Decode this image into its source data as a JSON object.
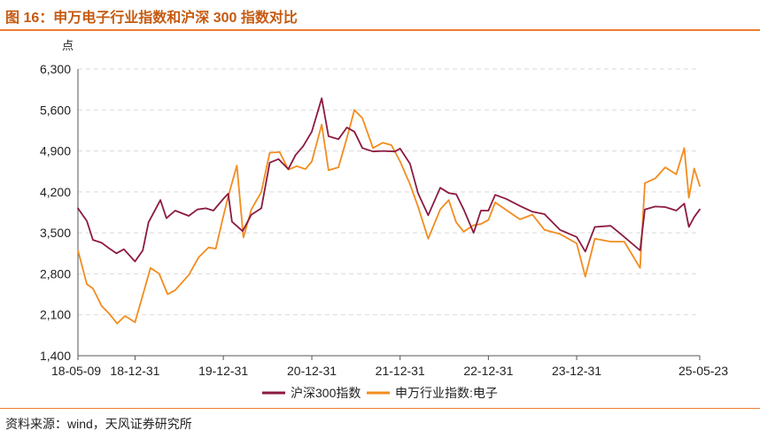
{
  "figure": {
    "title": "图 16：申万电子行业指数和沪深 300 指数对比",
    "source": "资料来源：wind，天风证券研究所"
  },
  "colors": {
    "title": "#c55a11",
    "rule": "#ed7d31",
    "hs300": "#8b1a3f",
    "sw_electronics": "#f28c1e",
    "grid": "#d9d9d9",
    "axis_text": "#222222"
  },
  "chart_data": {
    "type": "line",
    "ylabel": "点",
    "ylim": [
      1400,
      6300
    ],
    "yticks": [
      "1,400",
      "2,100",
      "2,800",
      "3,500",
      "4,200",
      "4,900",
      "5,600",
      "6,300"
    ],
    "ytick_values": [
      1400,
      2100,
      2800,
      3500,
      4200,
      4900,
      5600,
      6300
    ],
    "xlim": [
      "2018-05-09",
      "2025-05-23"
    ],
    "xticks": [
      "18-05-09",
      "18-12-31",
      "19-12-31",
      "20-12-31",
      "21-12-31",
      "22-12-31",
      "23-12-31",
      "25-05-23"
    ],
    "xtick_dates": [
      "2018-05-09",
      "2018-12-31",
      "2019-12-31",
      "2020-12-31",
      "2021-12-31",
      "2022-12-31",
      "2023-12-31",
      "2025-05-23"
    ],
    "grid": "horizontal dashed",
    "legend_position": "bottom-center",
    "series": [
      {
        "name": "沪深300指数",
        "color": "#8b1a3f",
        "x": [
          "2018-05-09",
          "2018-06-15",
          "2018-07-10",
          "2018-08-15",
          "2018-09-10",
          "2018-10-15",
          "2018-11-15",
          "2018-12-31",
          "2019-02-01",
          "2019-02-25",
          "2019-04-15",
          "2019-05-10",
          "2019-06-15",
          "2019-08-10",
          "2019-09-15",
          "2019-10-20",
          "2019-11-20",
          "2019-12-31",
          "2020-01-20",
          "2020-02-05",
          "2020-03-20",
          "2020-04-25",
          "2020-06-05",
          "2020-07-10",
          "2020-08-15",
          "2020-09-25",
          "2020-10-25",
          "2020-11-25",
          "2020-12-31",
          "2021-02-10",
          "2021-03-10",
          "2021-04-20",
          "2021-05-25",
          "2021-06-25",
          "2021-07-28",
          "2021-09-10",
          "2021-10-20",
          "2021-12-10",
          "2021-12-31",
          "2022-02-10",
          "2022-03-15",
          "2022-04-26",
          "2022-06-15",
          "2022-07-20",
          "2022-08-20",
          "2022-09-20",
          "2022-10-31",
          "2022-11-30",
          "2022-12-31",
          "2023-01-28",
          "2023-03-15",
          "2023-05-10",
          "2023-07-01",
          "2023-08-20",
          "2023-10-23",
          "2023-12-31",
          "2024-02-05",
          "2024-03-15",
          "2024-05-20",
          "2024-07-15",
          "2024-09-18",
          "2024-10-08",
          "2024-11-20",
          "2024-12-31",
          "2025-02-15",
          "2025-03-20",
          "2025-04-08",
          "2025-04-30",
          "2025-05-23"
        ],
        "values": [
          3920,
          3700,
          3380,
          3330,
          3250,
          3150,
          3220,
          3010,
          3200,
          3680,
          4060,
          3750,
          3880,
          3790,
          3900,
          3920,
          3880,
          4080,
          4170,
          3690,
          3530,
          3810,
          3920,
          4700,
          4760,
          4590,
          4830,
          4980,
          5230,
          5800,
          5150,
          5100,
          5300,
          5230,
          4950,
          4890,
          4900,
          4890,
          4940,
          4680,
          4180,
          3800,
          4270,
          4180,
          4160,
          3900,
          3500,
          3880,
          3880,
          4150,
          4080,
          3960,
          3860,
          3820,
          3550,
          3430,
          3180,
          3600,
          3620,
          3430,
          3200,
          3900,
          3950,
          3940,
          3880,
          4000,
          3600,
          3770,
          3900
        ]
      },
      {
        "name": "申万行业指数:电子",
        "color": "#f28c1e",
        "x": [
          "2018-05-09",
          "2018-06-15",
          "2018-07-10",
          "2018-08-15",
          "2018-09-15",
          "2018-10-18",
          "2018-11-20",
          "2018-12-31",
          "2019-01-31",
          "2019-03-05",
          "2019-04-10",
          "2019-05-15",
          "2019-06-15",
          "2019-08-10",
          "2019-09-20",
          "2019-10-31",
          "2019-11-30",
          "2019-12-31",
          "2020-01-20",
          "2020-02-25",
          "2020-03-23",
          "2020-04-25",
          "2020-06-05",
          "2020-07-10",
          "2020-08-20",
          "2020-09-25",
          "2020-10-30",
          "2020-12-05",
          "2020-12-31",
          "2021-02-10",
          "2021-03-10",
          "2021-04-20",
          "2021-05-25",
          "2021-06-25",
          "2021-07-28",
          "2021-09-10",
          "2021-10-20",
          "2021-11-25",
          "2021-12-31",
          "2022-02-10",
          "2022-03-15",
          "2022-04-26",
          "2022-06-15",
          "2022-07-20",
          "2022-08-20",
          "2022-09-20",
          "2022-10-31",
          "2022-11-30",
          "2022-12-31",
          "2023-01-28",
          "2023-03-15",
          "2023-05-10",
          "2023-07-01",
          "2023-08-20",
          "2023-10-23",
          "2023-12-31",
          "2024-02-05",
          "2024-03-15",
          "2024-05-20",
          "2024-07-15",
          "2024-09-18",
          "2024-10-08",
          "2024-11-20",
          "2024-12-31",
          "2025-02-15",
          "2025-03-20",
          "2025-04-08",
          "2025-04-30",
          "2025-05-23"
        ],
        "values": [
          3200,
          2620,
          2550,
          2250,
          2120,
          1950,
          2080,
          1970,
          2420,
          2900,
          2800,
          2450,
          2520,
          2780,
          3080,
          3250,
          3230,
          3780,
          4120,
          4650,
          3420,
          3900,
          4200,
          4870,
          4880,
          4580,
          4640,
          4590,
          4720,
          5350,
          4570,
          4620,
          5120,
          5600,
          5460,
          4950,
          5040,
          5000,
          4720,
          4330,
          3950,
          3400,
          3900,
          4060,
          3680,
          3520,
          3630,
          3650,
          3720,
          4020,
          3890,
          3730,
          3810,
          3550,
          3480,
          3320,
          2750,
          3400,
          3350,
          3350,
          2900,
          4350,
          4430,
          4620,
          4500,
          4950,
          4100,
          4600,
          4300
        ]
      }
    ]
  }
}
